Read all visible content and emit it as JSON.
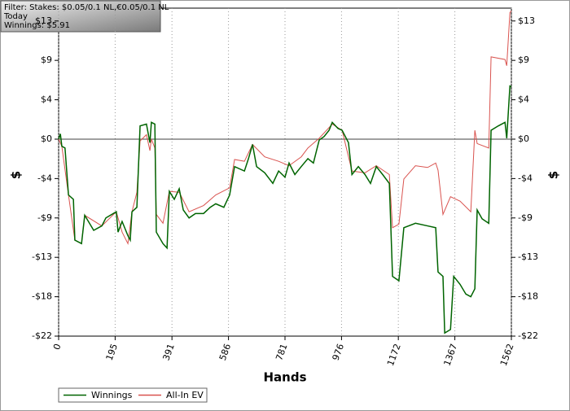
{
  "filter": {
    "lines": [
      "Filter: Stakes: $0.05/0.1 NL,€0.05/0.1 NL",
      "Today",
      "Winnings: $5.91"
    ]
  },
  "chart_data": {
    "type": "line",
    "xlabel": "Hands",
    "ylabel": "$",
    "y2label": "$",
    "xlim": [
      0,
      1562
    ],
    "xticks": [
      0,
      195,
      391,
      586,
      781,
      976,
      1172,
      1367,
      1562
    ],
    "ylim": [
      -22.25,
      14.8
    ],
    "yticks": [
      {
        "value": -22.25,
        "label": "-$22"
      },
      {
        "value": -17.8,
        "label": "-$18"
      },
      {
        "value": -13.35,
        "label": "-$13"
      },
      {
        "value": -8.9,
        "label": "-$9"
      },
      {
        "value": -4.45,
        "label": "-$4"
      },
      {
        "value": 0,
        "label": "$0"
      },
      {
        "value": 4.45,
        "label": "$4"
      },
      {
        "value": 8.9,
        "label": "$9"
      },
      {
        "value": 13.35,
        "label": "$13"
      }
    ],
    "grid": "x",
    "series": [
      {
        "name": "Winnings",
        "color": "#006400",
        "x": [
          0,
          6,
          11,
          22,
          34,
          51,
          56,
          79,
          90,
          121,
          149,
          163,
          199,
          205,
          219,
          239,
          247,
          253,
          270,
          281,
          303,
          315,
          320,
          332,
          337,
          360,
          374,
          382,
          399,
          416,
          430,
          450,
          472,
          500,
          523,
          542,
          570,
          590,
          607,
          641,
          655,
          669,
          683,
          711,
          739,
          759,
          781,
          795,
          815,
          837,
          860,
          879,
          899,
          916,
          933,
          944,
          964,
          978,
          1000,
          1012,
          1034,
          1057,
          1076,
          1096,
          1118,
          1141,
          1152,
          1174,
          1191,
          1231,
          1273,
          1301,
          1309,
          1326,
          1332,
          1352,
          1363,
          1385,
          1405,
          1422,
          1436,
          1444,
          1461,
          1484,
          1492,
          1517,
          1540,
          1546,
          1557,
          1562
        ],
        "values": [
          0,
          0.6,
          -0.8,
          -1,
          -6.3,
          -6.8,
          -11.4,
          -11.8,
          -8.6,
          -10.3,
          -9.8,
          -8.9,
          -8.2,
          -10.5,
          -9.3,
          -10.9,
          -11.4,
          -8.2,
          -7.7,
          1.5,
          1.7,
          -0.4,
          1.9,
          1.7,
          -10.5,
          -11.8,
          -12.3,
          -5.9,
          -6.8,
          -5.6,
          -8,
          -8.9,
          -8.4,
          -8.4,
          -7.7,
          -7.3,
          -7.7,
          -6.3,
          -3.1,
          -3.6,
          -2.2,
          -0.6,
          -3.1,
          -3.8,
          -5,
          -3.6,
          -4.3,
          -2.7,
          -4,
          -3.1,
          -2.2,
          -2.7,
          -0.1,
          0.3,
          1,
          1.9,
          1.2,
          1,
          -0.4,
          -4,
          -3.1,
          -4,
          -5,
          -3.1,
          -4,
          -5,
          -15.5,
          -16,
          -10,
          -9.5,
          -9.8,
          -10,
          -15,
          -15.5,
          -21.9,
          -21.5,
          -15.5,
          -16.4,
          -17.5,
          -17.8,
          -16.9,
          -8,
          -9,
          -9.5,
          1,
          1.5,
          1.9,
          0.1,
          6,
          5.91
        ]
      },
      {
        "name": "All-In EV",
        "color": "#d9534f",
        "x": [
          0,
          11,
          34,
          56,
          79,
          90,
          149,
          199,
          219,
          239,
          253,
          270,
          281,
          303,
          315,
          320,
          332,
          337,
          360,
          382,
          416,
          450,
          500,
          542,
          590,
          607,
          641,
          669,
          711,
          759,
          795,
          837,
          860,
          899,
          944,
          978,
          1012,
          1057,
          1096,
          1141,
          1152,
          1174,
          1191,
          1231,
          1273,
          1301,
          1309,
          1326,
          1352,
          1385,
          1422,
          1436,
          1444,
          1484,
          1492,
          1540,
          1546,
          1557,
          1562
        ],
        "values": [
          0,
          -0.8,
          -6.3,
          -11.4,
          -11.8,
          -8.6,
          -9.8,
          -8.2,
          -10.5,
          -11.8,
          -8.2,
          -6,
          -0.2,
          0.5,
          -1.3,
          0,
          -1,
          -8.5,
          -9.5,
          -5.9,
          -6,
          -8.2,
          -7.5,
          -6.3,
          -5.5,
          -2.3,
          -2.5,
          -0.6,
          -2,
          -2.5,
          -3,
          -2,
          -1,
          0.1,
          1.7,
          1,
          -3.6,
          -3.8,
          -3,
          -4,
          -10,
          -9.6,
          -4.5,
          -3,
          -3.2,
          -2.7,
          -3.5,
          -8.5,
          -6.5,
          -7,
          -8.2,
          1,
          -0.5,
          -1,
          9.3,
          9,
          8.3,
          14.3,
          14.5
        ]
      }
    ]
  }
}
